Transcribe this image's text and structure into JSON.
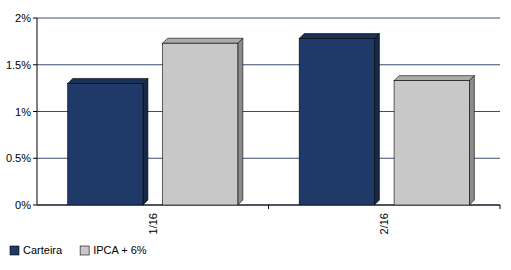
{
  "chart_data": {
    "type": "bar",
    "categories": [
      "1/16",
      "2/16"
    ],
    "series": [
      {
        "name": "Carteira",
        "color": "#1f3a68",
        "values": [
          1.3,
          1.78
        ]
      },
      {
        "name": "IPCA + 6%",
        "color": "#c8c8c8",
        "values": [
          1.73,
          1.33
        ]
      }
    ],
    "ylim": [
      0,
      2
    ],
    "yticks": [
      {
        "value": 0,
        "label": "0%"
      },
      {
        "value": 0.5,
        "label": "0.5%"
      },
      {
        "value": 1,
        "label": "1%"
      },
      {
        "value": 1.5,
        "label": "1.5%"
      },
      {
        "value": 2,
        "label": "2%"
      }
    ],
    "grid": true,
    "legend": "bottom"
  }
}
